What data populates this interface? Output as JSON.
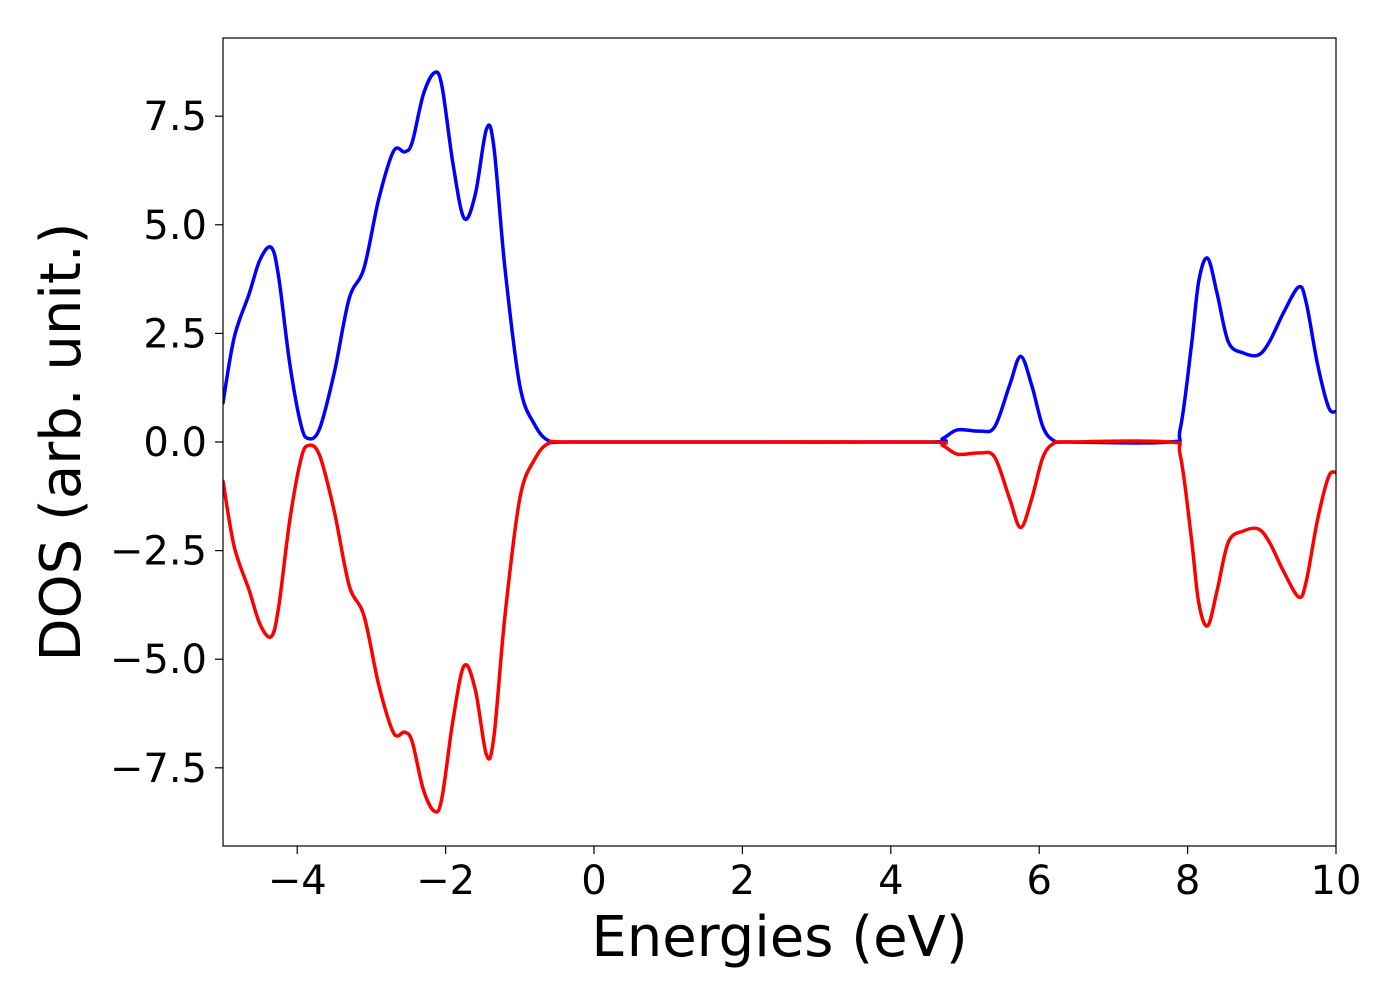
{
  "chart_data": {
    "type": "line",
    "title": "",
    "xlabel": "Energies (eV)",
    "ylabel": "DOS (arb. unit.)",
    "xlim": [
      -5,
      10
    ],
    "ylim": [
      -9.3,
      9.3
    ],
    "grid": false,
    "legend": "none",
    "x_ticks": [
      -4,
      -2,
      0,
      2,
      4,
      6,
      8,
      10
    ],
    "x_tick_labels": [
      "−4",
      "−2",
      "0",
      "2",
      "4",
      "6",
      "8",
      "10"
    ],
    "y_ticks": [
      7.5,
      5.0,
      2.5,
      0.0,
      -2.5,
      -5.0,
      -7.5
    ],
    "y_tick_labels": [
      "7.5",
      "5.0",
      "2.5",
      "0.0",
      "−2.5",
      "−5.0",
      "−7.5"
    ],
    "series": [
      {
        "color": "#0000ff",
        "points": [
          [
            -5.0,
            0.9
          ],
          [
            -4.85,
            2.4
          ],
          [
            -4.65,
            3.4
          ],
          [
            -4.5,
            4.2
          ],
          [
            -4.35,
            4.48
          ],
          [
            -4.25,
            3.8
          ],
          [
            -4.1,
            1.8
          ],
          [
            -3.95,
            0.4
          ],
          [
            -3.85,
            0.08
          ],
          [
            -3.7,
            0.3
          ],
          [
            -3.5,
            1.6
          ],
          [
            -3.3,
            3.3
          ],
          [
            -3.1,
            4.0
          ],
          [
            -2.9,
            5.6
          ],
          [
            -2.7,
            6.7
          ],
          [
            -2.55,
            6.68
          ],
          [
            -2.45,
            6.9
          ],
          [
            -2.3,
            8.0
          ],
          [
            -2.15,
            8.5
          ],
          [
            -2.05,
            8.2
          ],
          [
            -1.9,
            6.4
          ],
          [
            -1.75,
            5.15
          ],
          [
            -1.6,
            5.7
          ],
          [
            -1.45,
            7.2
          ],
          [
            -1.35,
            6.8
          ],
          [
            -1.2,
            4.0
          ],
          [
            -1.0,
            1.3
          ],
          [
            -0.8,
            0.4
          ],
          [
            -0.6,
            0.02
          ],
          [
            -0.3,
            0.0
          ],
          [
            2.0,
            0.0
          ],
          [
            4.5,
            0.0
          ],
          [
            4.7,
            0.08
          ],
          [
            4.9,
            0.28
          ],
          [
            5.2,
            0.25
          ],
          [
            5.4,
            0.35
          ],
          [
            5.6,
            1.3
          ],
          [
            5.75,
            1.97
          ],
          [
            5.9,
            1.3
          ],
          [
            6.05,
            0.35
          ],
          [
            6.2,
            0.03
          ],
          [
            6.4,
            0.0
          ],
          [
            7.75,
            0.0
          ],
          [
            7.9,
            0.3
          ],
          [
            8.05,
            2.2
          ],
          [
            8.15,
            3.7
          ],
          [
            8.27,
            4.23
          ],
          [
            8.4,
            3.4
          ],
          [
            8.55,
            2.3
          ],
          [
            8.75,
            2.05
          ],
          [
            8.95,
            2.0
          ],
          [
            9.1,
            2.3
          ],
          [
            9.3,
            3.0
          ],
          [
            9.5,
            3.57
          ],
          [
            9.6,
            3.2
          ],
          [
            9.75,
            1.8
          ],
          [
            9.9,
            0.8
          ],
          [
            10.0,
            0.7
          ]
        ]
      },
      {
        "color": "#ff0000",
        "points": [
          [
            -5.0,
            -0.9
          ],
          [
            -4.85,
            -2.4
          ],
          [
            -4.65,
            -3.4
          ],
          [
            -4.5,
            -4.2
          ],
          [
            -4.35,
            -4.48
          ],
          [
            -4.25,
            -3.8
          ],
          [
            -4.1,
            -1.8
          ],
          [
            -3.95,
            -0.4
          ],
          [
            -3.85,
            -0.08
          ],
          [
            -3.7,
            -0.3
          ],
          [
            -3.5,
            -1.6
          ],
          [
            -3.3,
            -3.3
          ],
          [
            -3.1,
            -4.0
          ],
          [
            -2.9,
            -5.6
          ],
          [
            -2.7,
            -6.7
          ],
          [
            -2.55,
            -6.68
          ],
          [
            -2.45,
            -6.9
          ],
          [
            -2.3,
            -8.0
          ],
          [
            -2.15,
            -8.5
          ],
          [
            -2.05,
            -8.2
          ],
          [
            -1.9,
            -6.4
          ],
          [
            -1.75,
            -5.15
          ],
          [
            -1.6,
            -5.7
          ],
          [
            -1.45,
            -7.2
          ],
          [
            -1.35,
            -6.8
          ],
          [
            -1.2,
            -4.0
          ],
          [
            -1.0,
            -1.3
          ],
          [
            -0.8,
            -0.4
          ],
          [
            -0.6,
            -0.02
          ],
          [
            -0.3,
            0.0
          ],
          [
            2.0,
            0.0
          ],
          [
            4.5,
            0.0
          ],
          [
            4.7,
            -0.08
          ],
          [
            4.9,
            -0.28
          ],
          [
            5.2,
            -0.25
          ],
          [
            5.4,
            -0.35
          ],
          [
            5.6,
            -1.3
          ],
          [
            5.75,
            -1.97
          ],
          [
            5.9,
            -1.3
          ],
          [
            6.05,
            -0.35
          ],
          [
            6.2,
            -0.03
          ],
          [
            6.4,
            0.0
          ],
          [
            7.75,
            0.0
          ],
          [
            7.9,
            -0.3
          ],
          [
            8.05,
            -2.2
          ],
          [
            8.15,
            -3.7
          ],
          [
            8.27,
            -4.23
          ],
          [
            8.4,
            -3.4
          ],
          [
            8.55,
            -2.3
          ],
          [
            8.75,
            -2.05
          ],
          [
            8.95,
            -2.0
          ],
          [
            9.1,
            -2.3
          ],
          [
            9.3,
            -3.0
          ],
          [
            9.5,
            -3.57
          ],
          [
            9.6,
            -3.2
          ],
          [
            9.75,
            -1.8
          ],
          [
            9.9,
            -0.8
          ],
          [
            10.0,
            -0.7
          ]
        ]
      }
    ]
  }
}
